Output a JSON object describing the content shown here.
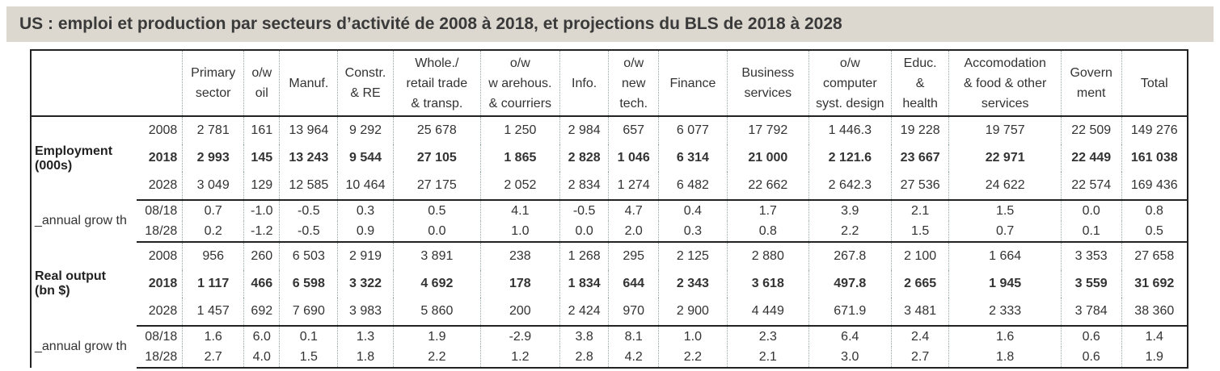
{
  "title": "US : emploi et production par secteurs d’activité de 2008 à 2018, et projections du BLS de 2018 à 2028",
  "columns": [
    [
      "Primary",
      "sector"
    ],
    [
      "o/w",
      "oil"
    ],
    [
      "Manuf."
    ],
    [
      "Constr.",
      "& RE"
    ],
    [
      "Whole./",
      "retail trade",
      "& transp."
    ],
    [
      "o/w",
      "w arehous.",
      "& courriers"
    ],
    [
      "Info."
    ],
    [
      "o/w",
      "new",
      "tech."
    ],
    [
      "Finance"
    ],
    [
      "Business",
      "services"
    ],
    [
      "o/w",
      "computer",
      "syst. design"
    ],
    [
      "Educ.",
      "&",
      "health"
    ],
    [
      "Accomodation",
      "& food & other",
      "services"
    ],
    [
      "Govern",
      "ment"
    ],
    [
      "Total"
    ]
  ],
  "employment": {
    "label": [
      "Employment",
      "(000s)"
    ],
    "rows": [
      {
        "year": "2008",
        "bold": false,
        "values": [
          "2 781",
          "161",
          "13 964",
          "9 292",
          "25 678",
          "1 250",
          "2 984",
          "657",
          "6 077",
          "17 792",
          "1 446.3",
          "19 228",
          "19 757",
          "22 509",
          "149 276"
        ]
      },
      {
        "year": "2018",
        "bold": true,
        "values": [
          "2 993",
          "145",
          "13 243",
          "9 544",
          "27 105",
          "1 865",
          "2 828",
          "1 046",
          "6 314",
          "21 000",
          "2 121.6",
          "23 667",
          "22 971",
          "22 449",
          "161 038"
        ]
      },
      {
        "year": "2028",
        "bold": false,
        "values": [
          "3 049",
          "129",
          "12 585",
          "10 464",
          "27 175",
          "2 052",
          "2 834",
          "1 274",
          "6 482",
          "22 662",
          "2 642.3",
          "27 536",
          "24 622",
          "22 574",
          "169 436"
        ]
      }
    ]
  },
  "employment_growth": {
    "label": "_annual grow th",
    "rows": [
      {
        "year": "08/18",
        "values": [
          "0.7",
          "-1.0",
          "-0.5",
          "0.3",
          "0.5",
          "4.1",
          "-0.5",
          "4.7",
          "0.4",
          "1.7",
          "3.9",
          "2.1",
          "1.5",
          "0.0",
          "0.8"
        ]
      },
      {
        "year": "18/28",
        "values": [
          "0.2",
          "-1.2",
          "-0.5",
          "0.9",
          "0.0",
          "1.0",
          "0.0",
          "2.0",
          "0.3",
          "0.8",
          "2.2",
          "1.5",
          "0.7",
          "0.1",
          "0.5"
        ]
      }
    ]
  },
  "output": {
    "label": [
      "Real output",
      "(bn $)"
    ],
    "rows": [
      {
        "year": "2008",
        "bold": false,
        "values": [
          "956",
          "260",
          "6 503",
          "2 919",
          "3 891",
          "238",
          "1 268",
          "295",
          "2 125",
          "2 880",
          "267.8",
          "2 100",
          "1 664",
          "3 353",
          "27 658"
        ]
      },
      {
        "year": "2018",
        "bold": true,
        "values": [
          "1 117",
          "466",
          "6 598",
          "3 322",
          "4 692",
          "178",
          "1 834",
          "644",
          "2 343",
          "3 618",
          "497.8",
          "2 665",
          "1 945",
          "3 559",
          "31 692"
        ]
      },
      {
        "year": "2028",
        "bold": false,
        "values": [
          "1 457",
          "692",
          "7 690",
          "3 983",
          "5 860",
          "200",
          "2 424",
          "970",
          "2 900",
          "4 449",
          "671.9",
          "3 481",
          "2 333",
          "3 784",
          "38 360"
        ]
      }
    ]
  },
  "output_growth": {
    "label": "_annual grow th",
    "rows": [
      {
        "year": "08/18",
        "values": [
          "1.6",
          "6.0",
          "0.1",
          "1.3",
          "1.9",
          "-2.9",
          "3.8",
          "8.1",
          "1.0",
          "2.3",
          "6.4",
          "2.4",
          "1.6",
          "0.6",
          "1.4"
        ]
      },
      {
        "year": "18/28",
        "values": [
          "2.7",
          "4.0",
          "1.5",
          "1.8",
          "2.2",
          "1.2",
          "2.8",
          "4.2",
          "2.2",
          "2.1",
          "3.0",
          "2.7",
          "1.8",
          "0.6",
          "1.9"
        ]
      }
    ]
  }
}
